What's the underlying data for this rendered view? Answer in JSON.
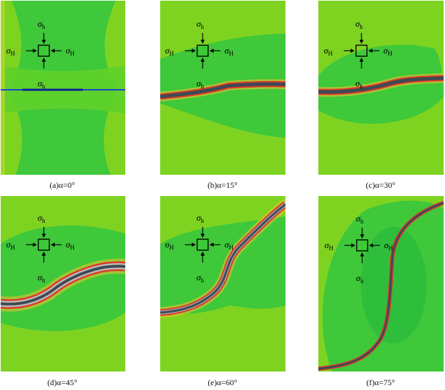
{
  "figure": {
    "panels": [
      {
        "id": "a",
        "caption": "(a)α=0°",
        "alpha_deg": 0
      },
      {
        "id": "b",
        "caption": "(b)α=15°",
        "alpha_deg": 15
      },
      {
        "id": "c",
        "caption": "(c)α=30°",
        "alpha_deg": 30
      },
      {
        "id": "d",
        "caption": "(d)α=45°",
        "alpha_deg": 45
      },
      {
        "id": "e",
        "caption": "(e)α=60°",
        "alpha_deg": 60
      },
      {
        "id": "f",
        "caption": "(f)α=75°",
        "alpha_deg": 75
      }
    ],
    "stress_symbol": "σ",
    "sub_min": "h",
    "sub_max": "H",
    "colors": {
      "background": "#7ed321",
      "stress_zone": "#3ec83a",
      "fracture_core": "#3d4a52",
      "damage_halo": "#e0392a",
      "halo_outer": "#f1c232",
      "initial_crack": "#1a3fd6"
    }
  }
}
